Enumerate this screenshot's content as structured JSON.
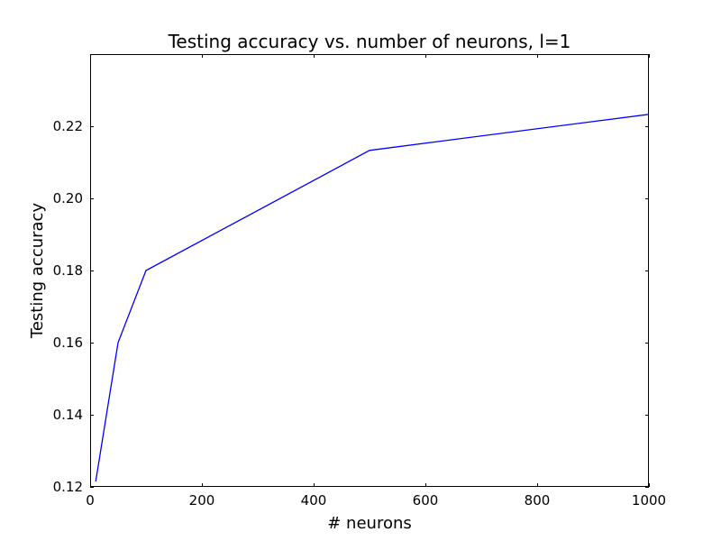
{
  "chart_data": {
    "type": "line",
    "title": "Testing accuracy vs. number of neurons, l=1",
    "xlabel": "# neurons",
    "ylabel": "Testing accuracy",
    "xlim": [
      0,
      1000
    ],
    "ylim": [
      0.12,
      0.24
    ],
    "xticks": [
      0,
      200,
      400,
      600,
      800,
      1000
    ],
    "xtick_labels": [
      "0",
      "200",
      "400",
      "600",
      "800",
      "1000"
    ],
    "yticks": [
      0.12,
      0.14,
      0.16,
      0.18,
      0.2,
      0.22
    ],
    "ytick_labels": [
      "0.12",
      "0.14",
      "0.16",
      "0.18",
      "0.20",
      "0.22"
    ],
    "grid": false,
    "series": [
      {
        "color": "#0000ff",
        "x": [
          10,
          50,
          100,
          500,
          1000
        ],
        "y": [
          0.1215,
          0.16,
          0.18,
          0.2133,
          0.2233
        ]
      }
    ]
  }
}
